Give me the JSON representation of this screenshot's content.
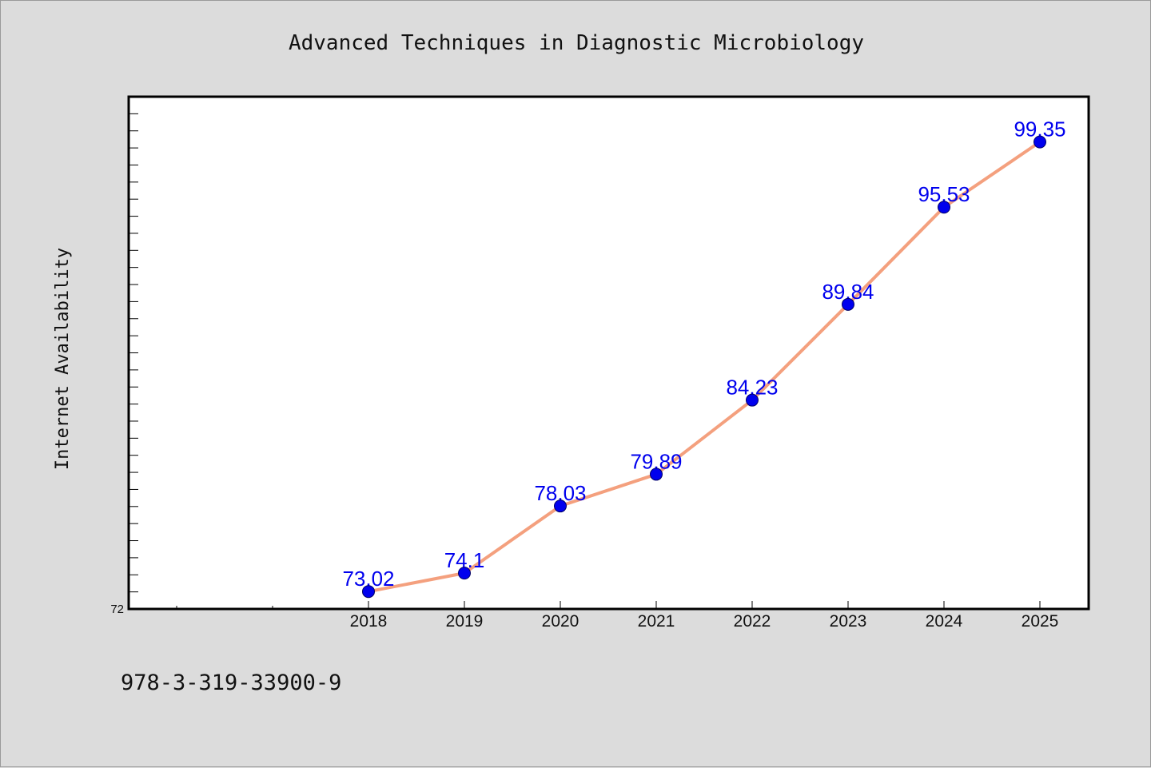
{
  "chart_data": {
    "type": "line",
    "title": "Advanced Techniques in Diagnostic Microbiology",
    "xlabel": "",
    "ylabel": "Internet Availability",
    "x": [
      "2018",
      "2019",
      "2020",
      "2021",
      "2022",
      "2023",
      "2024",
      "2025"
    ],
    "series": [
      {
        "values": [
          73.02,
          74.1,
          78.03,
          79.89,
          84.23,
          89.84,
          95.53,
          99.35
        ],
        "labels": [
          "73.02",
          "74.1",
          "78.03",
          "79.89",
          "84.23",
          "89.84",
          "95.53",
          "99.35"
        ]
      }
    ],
    "ylim": [
      72,
      102
    ],
    "ytick_labels": [
      "72"
    ],
    "grid": false,
    "legend": "none",
    "line_color": "#f4a07e",
    "marker_color": "#0000ee",
    "label_color": "#0000ee",
    "background_color": "#dcdcdc",
    "plot_background_color": "#ffffff"
  },
  "footer": {
    "isbn": "978-3-319-33900-9"
  }
}
